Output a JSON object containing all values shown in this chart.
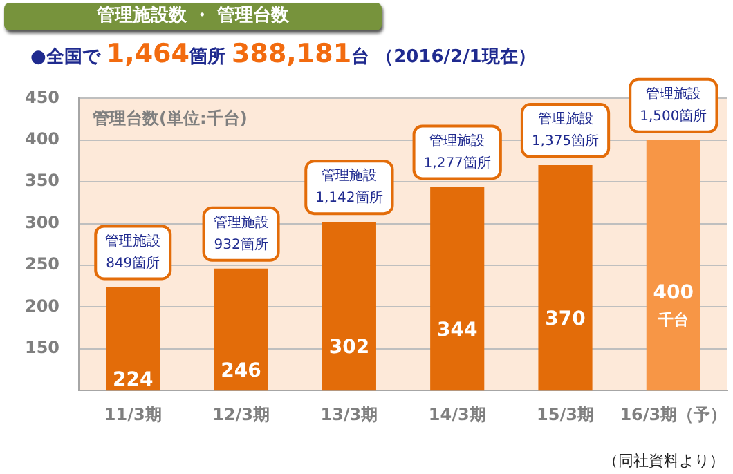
{
  "chart_data": {
    "type": "bar",
    "title": "管理施設数 ・ 管理台数",
    "subtitle": "●全国で 1,464箇所 388,181台 （2016/2/1現在）",
    "ylabel": "管理台数(単位:千台)",
    "categories": [
      "11/3期",
      "12/3期",
      "13/3期",
      "14/3期",
      "15/3期",
      "16/3期（予）"
    ],
    "values": [
      224,
      246,
      302,
      344,
      370,
      400
    ],
    "colors": [
      "#e36c09",
      "#e36c09",
      "#e36c09",
      "#e36c09",
      "#e36c09",
      "#f79646"
    ],
    "value_labels": [
      "224",
      "246",
      "302",
      "344",
      "370",
      "400\n千台"
    ],
    "ylim": [
      100,
      450
    ],
    "yticks": [
      150,
      200,
      250,
      300,
      350,
      400,
      450
    ],
    "grid": "y",
    "annotations": [
      {
        "text": "管理施設\n849箇所",
        "x": "11/3期",
        "y": 224
      },
      {
        "text": "管理施設\n932箇所",
        "x": "12/3期",
        "y": 246
      },
      {
        "text": "管理施設\n1,142箇所",
        "x": "13/3期",
        "y": 302
      },
      {
        "text": "管理施設\n1,277箇所",
        "x": "14/3期",
        "y": 344
      },
      {
        "text": "管理施設\n1,375箇所",
        "x": "15/3期",
        "y": 370
      },
      {
        "text": "管理施設\n1,500箇所",
        "x": "16/3期（予）",
        "y": 400
      },
      "（同社資料より）"
    ]
  }
}
